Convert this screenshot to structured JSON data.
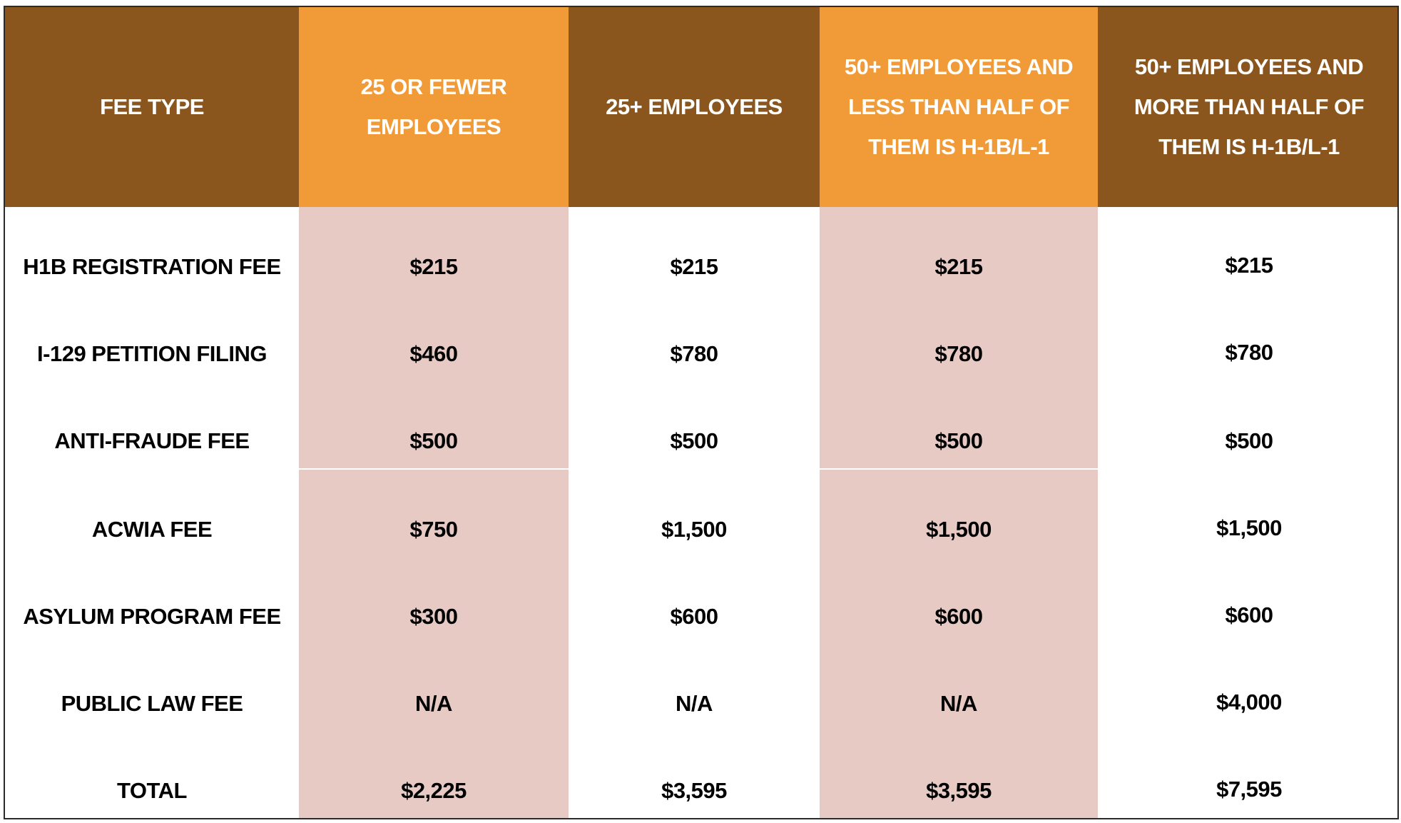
{
  "headers": [
    "FEE TYPE",
    "25 OR FEWER EMPLOYEES",
    "25+ EMPLOYEES",
    "50+ EMPLOYEES AND LESS THAN HALF OF THEM IS H-1B/L-1",
    "50+ EMPLOYEES AND MORE THAN HALF OF THEM IS H-1B/L-1"
  ],
  "rows": [
    [
      "H1B REGISTRATION FEE",
      "$215",
      "$215",
      "$215",
      "$215"
    ],
    [
      "I-129 PETITION FILING",
      "$460",
      "$780",
      "$780",
      "$780"
    ],
    [
      "ANTI-FRAUDE FEE",
      "$500",
      "$500",
      "$500",
      "$500"
    ],
    [
      "ACWIA FEE",
      "$750",
      "$1,500",
      "$1,500",
      "$1,500"
    ],
    [
      "ASYLUM PROGRAM FEE",
      "$300",
      "$600",
      "$600",
      "$600"
    ],
    [
      "PUBLIC LAW FEE",
      "N/A",
      "N/A",
      "N/A",
      "$4,000"
    ],
    [
      "TOTAL",
      "$2,225",
      "$3,595",
      "$3,595",
      "$7,595"
    ]
  ],
  "colors": {
    "header_dark": "#8b561e",
    "header_light": "#f19a38",
    "shaded_column": "#e8cac5"
  }
}
